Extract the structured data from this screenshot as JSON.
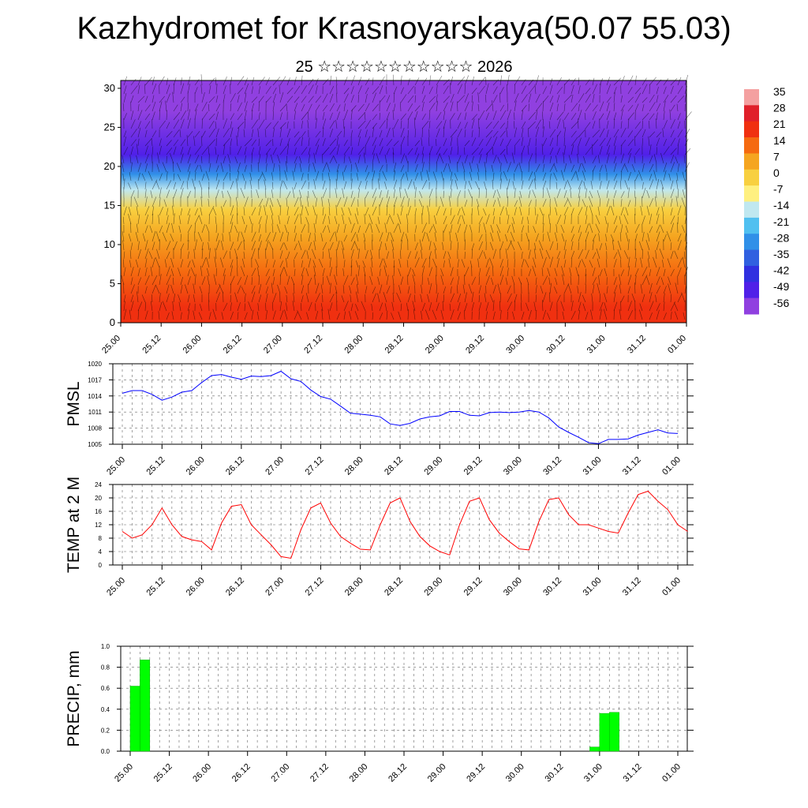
{
  "title": "Kazhydromet for Krasnoyarskaya(50.07 55.03)",
  "subtitle": "25 ☆☆☆☆☆☆☆☆☆☆☆ 2026",
  "time_labels": [
    "25.00",
    "25.12",
    "26.00",
    "26.12",
    "27.00",
    "27.12",
    "28.00",
    "28.12",
    "29.00",
    "29.12",
    "30.00",
    "30.12",
    "31.00",
    "31.12",
    "01.00"
  ],
  "colorbar": {
    "labels": [
      "35",
      "28",
      "21",
      "14",
      "7",
      "0",
      "-7",
      "-14",
      "-21",
      "-28",
      "-35",
      "-42",
      "-49",
      "-56"
    ],
    "colors_top_to_bottom": [
      "#f4a0a0",
      "#e0202a",
      "#f03010",
      "#f56a10",
      "#f5a520",
      "#f8d040",
      "#fff080",
      "#c0e8f0",
      "#50c0f0",
      "#3090e8",
      "#3060e0",
      "#3030e0",
      "#5020e8",
      "#9040e0"
    ]
  },
  "chart_data": [
    {
      "type": "heatmap",
      "title": "",
      "xlabel": "",
      "ylabel": "",
      "x_tick_labels": [
        "25.00",
        "25.12",
        "26.00",
        "26.12",
        "27.00",
        "27.12",
        "28.00",
        "28.12",
        "29.00",
        "29.12",
        "30.00",
        "30.12",
        "31.00",
        "31.12",
        "01.00"
      ],
      "y_tick_labels": [
        "0",
        "5",
        "10",
        "15",
        "20",
        "25",
        "30"
      ],
      "ylim": [
        0,
        31
      ],
      "colorbar_range": [
        -56,
        35
      ],
      "layers_bottom_to_top": [
        {
          "from": 0,
          "to": 4,
          "value": 21
        },
        {
          "from": 4,
          "to": 9,
          "value": 14
        },
        {
          "from": 9,
          "to": 13,
          "value": 7
        },
        {
          "from": 13,
          "to": 16,
          "value": 0
        },
        {
          "from": 16,
          "to": 18,
          "value": -14
        },
        {
          "from": 18,
          "to": 20,
          "value": -28
        },
        {
          "from": 20,
          "to": 23,
          "value": -49
        },
        {
          "from": 23,
          "to": 31,
          "value": -56
        }
      ]
    },
    {
      "type": "line",
      "ylabel": "PMSL",
      "ylim": [
        1005,
        1020
      ],
      "y_tick_labels": [
        "1005",
        "1008",
        "1011",
        "1014",
        "1017",
        "1020"
      ],
      "x_tick_labels": [
        "25.00",
        "25.12",
        "26.00",
        "26.12",
        "27.00",
        "27.12",
        "28.00",
        "28.12",
        "29.00",
        "29.12",
        "30.00",
        "30.12",
        "31.00",
        "31.12",
        "01.00"
      ],
      "color": "#0000ff",
      "values": [
        1014.5,
        1015,
        1015,
        1014.3,
        1013.2,
        1013.8,
        1014.7,
        1015,
        1016.5,
        1017.8,
        1018,
        1017.5,
        1017.1,
        1017.7,
        1017.6,
        1017.8,
        1018.6,
        1017.2,
        1016.7,
        1015.1,
        1013.9,
        1013.4,
        1012.1,
        1010.8,
        1010.6,
        1010.4,
        1010.1,
        1008.8,
        1008.5,
        1008.9,
        1009.7,
        1010.1,
        1010.3,
        1011.1,
        1011.1,
        1010.4,
        1010.3,
        1010.9,
        1011,
        1010.9,
        1011,
        1011.3,
        1011,
        1009.9,
        1008.2,
        1007.2,
        1006.3,
        1005.3,
        1005.1,
        1005.9,
        1005.9,
        1006,
        1006.7,
        1007.2,
        1007.7,
        1007.1,
        1007
      ],
      "x": [
        0,
        0.25,
        0.5,
        0.75,
        1,
        1.25,
        1.5,
        1.75,
        2,
        2.25,
        2.5,
        2.75,
        3,
        3.25,
        3.5,
        3.75,
        4,
        4.25,
        4.5,
        4.75,
        5,
        5.25,
        5.5,
        5.75,
        6,
        6.25,
        6.5,
        6.75,
        7,
        7.25,
        7.5,
        7.75,
        8,
        8.25,
        8.5,
        8.75,
        9,
        9.25,
        9.5,
        9.75,
        10,
        10.25,
        10.5,
        10.75,
        11,
        11.25,
        11.5,
        11.75,
        12,
        12.25,
        12.5,
        12.75,
        13,
        13.25,
        13.5,
        13.75,
        14
      ]
    },
    {
      "type": "line",
      "ylabel": "TEMP at 2 M",
      "ylim": [
        0,
        24
      ],
      "y_tick_labels": [
        "0",
        "4",
        "8",
        "12",
        "16",
        "20",
        "24"
      ],
      "x_tick_labels": [
        "25.00",
        "25.12",
        "26.00",
        "26.12",
        "27.00",
        "27.12",
        "28.00",
        "28.12",
        "29.00",
        "29.12",
        "30.00",
        "30.12",
        "31.00",
        "31.12",
        "01.00"
      ],
      "color": "#ff0000",
      "values": [
        10,
        8,
        9,
        12,
        17,
        12,
        8.5,
        7.5,
        7,
        4.5,
        12.5,
        17.5,
        18,
        12,
        9,
        6,
        2.5,
        2,
        10.5,
        17,
        18.5,
        12.5,
        8.5,
        6.5,
        4.7,
        4.5,
        12,
        18.5,
        20,
        13,
        8.5,
        5.7,
        4,
        3,
        12,
        19,
        20,
        13.5,
        9.5,
        7,
        4.8,
        4.5,
        13,
        19.5,
        20,
        15,
        12,
        12,
        11,
        10,
        9.5,
        15.5,
        21,
        22,
        19,
        16.5,
        12,
        10
      ],
      "x": [
        0,
        0.25,
        0.5,
        0.75,
        1,
        1.25,
        1.5,
        1.75,
        2,
        2.25,
        2.5,
        2.75,
        3,
        3.25,
        3.5,
        3.75,
        4,
        4.25,
        4.5,
        4.75,
        5,
        5.25,
        5.5,
        5.75,
        6,
        6.25,
        6.5,
        6.75,
        7,
        7.25,
        7.5,
        7.75,
        8,
        8.25,
        8.5,
        8.75,
        9,
        9.25,
        9.5,
        9.75,
        10,
        10.25,
        10.5,
        10.75,
        11,
        11.25,
        11.5,
        11.75,
        12,
        12.25,
        12.5,
        12.75,
        13,
        13.25,
        13.5,
        13.75,
        14,
        14.25
      ]
    },
    {
      "type": "bar",
      "ylabel": "PRECIP, mm",
      "ylim": [
        0,
        1
      ],
      "y_tick_labels": [
        "0.0",
        "0.2",
        "0.4",
        "0.6",
        "0.8",
        "1.0"
      ],
      "x_tick_labels": [
        "25.00",
        "25.12",
        "26.00",
        "26.12",
        "27.00",
        "27.12",
        "28.00",
        "28.12",
        "29.00",
        "29.12",
        "30.00",
        "30.12",
        "31.00",
        "31.12",
        "01.00"
      ],
      "color": "#00ff00",
      "bars": [
        {
          "x": 0.0,
          "value": 0.62
        },
        {
          "x": 0.25,
          "value": 0.87
        },
        {
          "x": 11.75,
          "value": 0.04
        },
        {
          "x": 12.0,
          "value": 0.36
        },
        {
          "x": 12.25,
          "value": 0.37
        }
      ]
    }
  ]
}
